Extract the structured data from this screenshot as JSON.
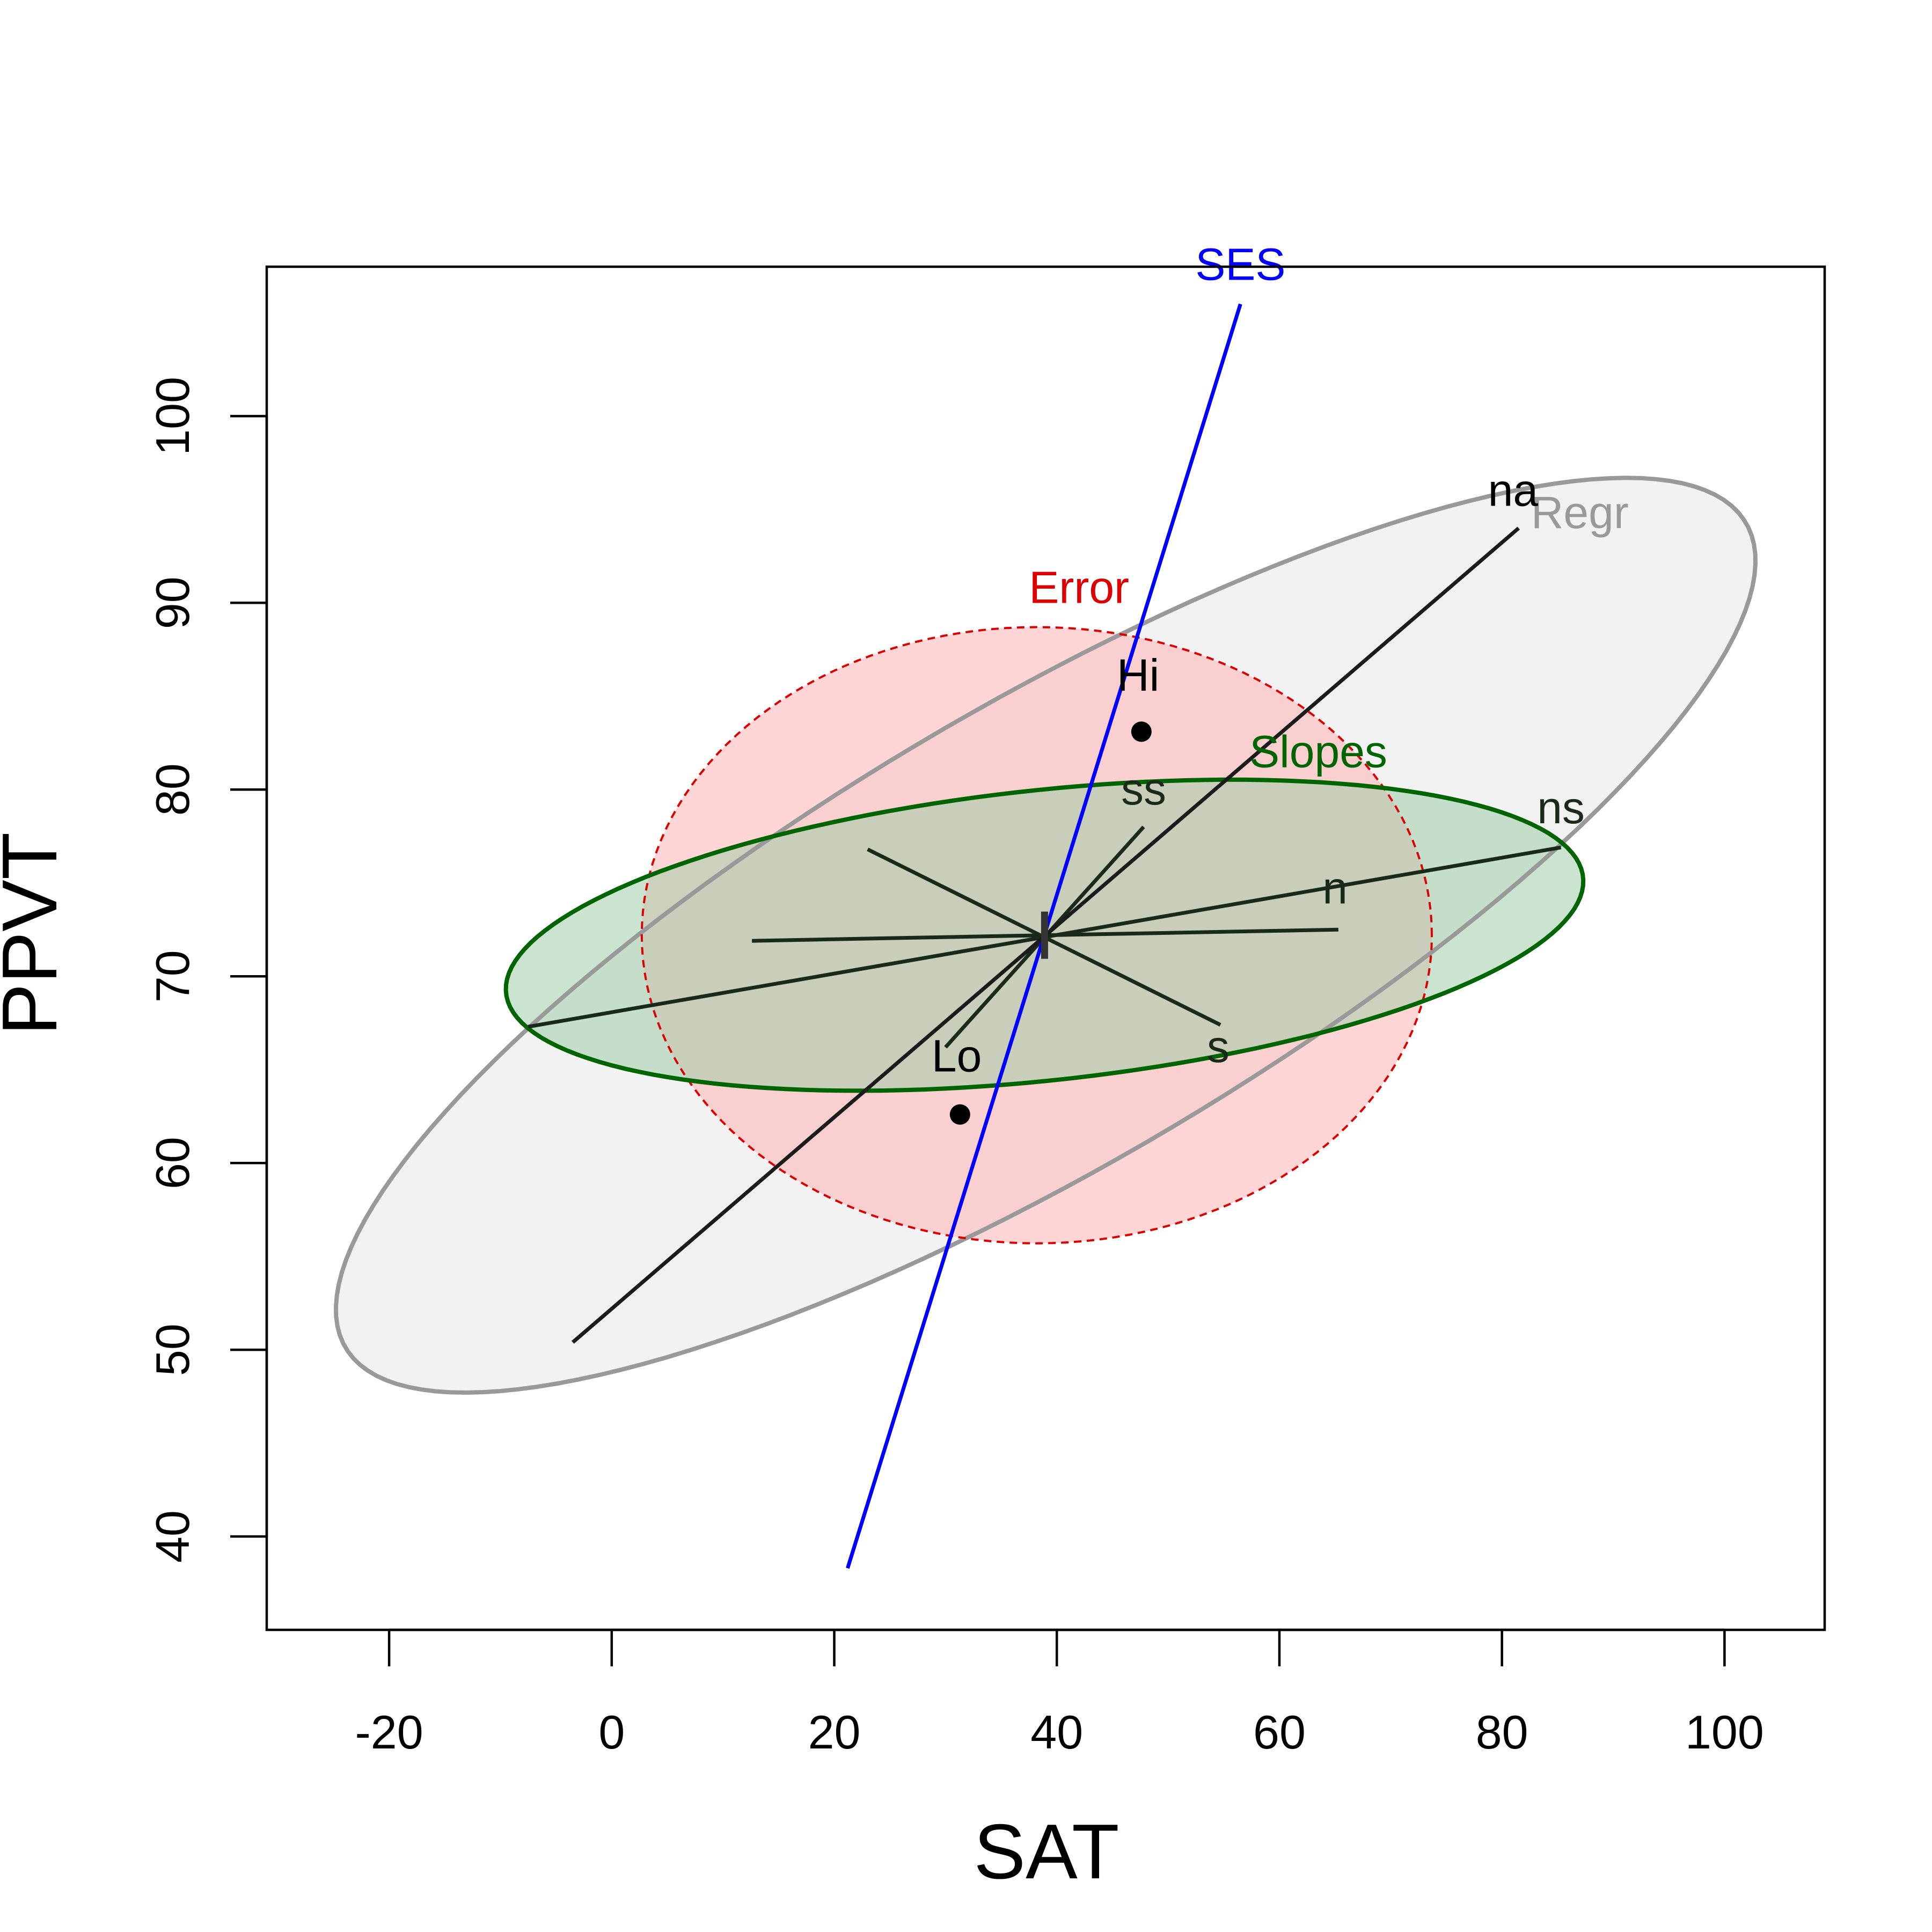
{
  "chart_data": {
    "type": "scatter",
    "title": "",
    "xlabel": "SAT",
    "ylabel": "PPVT",
    "xlim": [
      -31,
      109
    ],
    "ylim": [
      35,
      108
    ],
    "xticks": [
      -20,
      0,
      20,
      40,
      60,
      80,
      100
    ],
    "yticks": [
      40,
      50,
      60,
      70,
      80,
      90,
      100
    ],
    "xtick_labels": [
      "-20",
      "0",
      "20",
      "40",
      "60",
      "80",
      "100"
    ],
    "ytick_labels": [
      "40",
      "50",
      "60",
      "70",
      "80",
      "90",
      "100"
    ],
    "grid": false,
    "legend": null,
    "center": {
      "x": 38.9,
      "y": 72.2
    },
    "ellipses": [
      {
        "label": "Regr",
        "color": "#999999",
        "fill": "#e8e8e8",
        "dashed": false,
        "center": [
          39,
          72.2
        ],
        "a": 67,
        "b": 13.4,
        "angle_deg": 18.2,
        "label_pos": {
          "x": 87,
          "y": 94
        }
      },
      {
        "label": "Error",
        "color": "#dd0000",
        "fill": "#ffb3b3",
        "dashed": true,
        "center": [
          38.2,
          72.2
        ],
        "a": 35.5,
        "b": 16.5,
        "angle_deg": 0,
        "label_pos": {
          "x": 42,
          "y": 90
        }
      },
      {
        "label": "Slopes",
        "color": "#006400",
        "fill": "#a0ceaa",
        "dashed": false,
        "center": [
          38.9,
          72.2
        ],
        "a": 48.5,
        "b": 7.8,
        "angle_deg": 3.5,
        "label_pos": {
          "x": 63.5,
          "y": 81.2
        }
      }
    ],
    "hypothesis_lines": [
      {
        "label": "SES",
        "color": "#0000ff",
        "from": [
          21.2,
          38.3
        ],
        "to": [
          56.5,
          106
        ],
        "label_pos": {
          "x": 56.5,
          "y": 107.3
        }
      },
      {
        "label": "na",
        "color": "#000000",
        "from": [
          -3.5,
          50.4
        ],
        "to": [
          81.5,
          94
        ],
        "label_pos": {
          "x": 81,
          "y": 95.2
        }
      }
    ],
    "contrasts": [
      {
        "label": "ns",
        "from": [
          -7.5,
          67.3
        ],
        "to": [
          85.3,
          76.9
        ],
        "label_pos": {
          "x": 85.3,
          "y": 78.2
        }
      },
      {
        "label": "n",
        "from": [
          12.6,
          71.9
        ],
        "to": [
          65.3,
          72.5
        ],
        "label_pos": {
          "x": 65,
          "y": 73.9
        }
      },
      {
        "label": "s",
        "from": [
          23,
          76.8
        ],
        "to": [
          54.7,
          67.4
        ],
        "label_pos": {
          "x": 54.5,
          "y": 65.4
        }
      },
      {
        "label": "ss",
        "from": [
          30,
          66.2
        ],
        "to": [
          47.8,
          78
        ],
        "label_pos": {
          "x": 47.8,
          "y": 79.2
        }
      }
    ],
    "points": [
      {
        "label": "Hi",
        "x": 47.6,
        "y": 83.1,
        "label_pos": {
          "x": 47.3,
          "y": 85.3
        }
      },
      {
        "label": "Lo",
        "x": 31.3,
        "y": 62.6,
        "label_pos": {
          "x": 31,
          "y": 64.9
        }
      }
    ]
  }
}
